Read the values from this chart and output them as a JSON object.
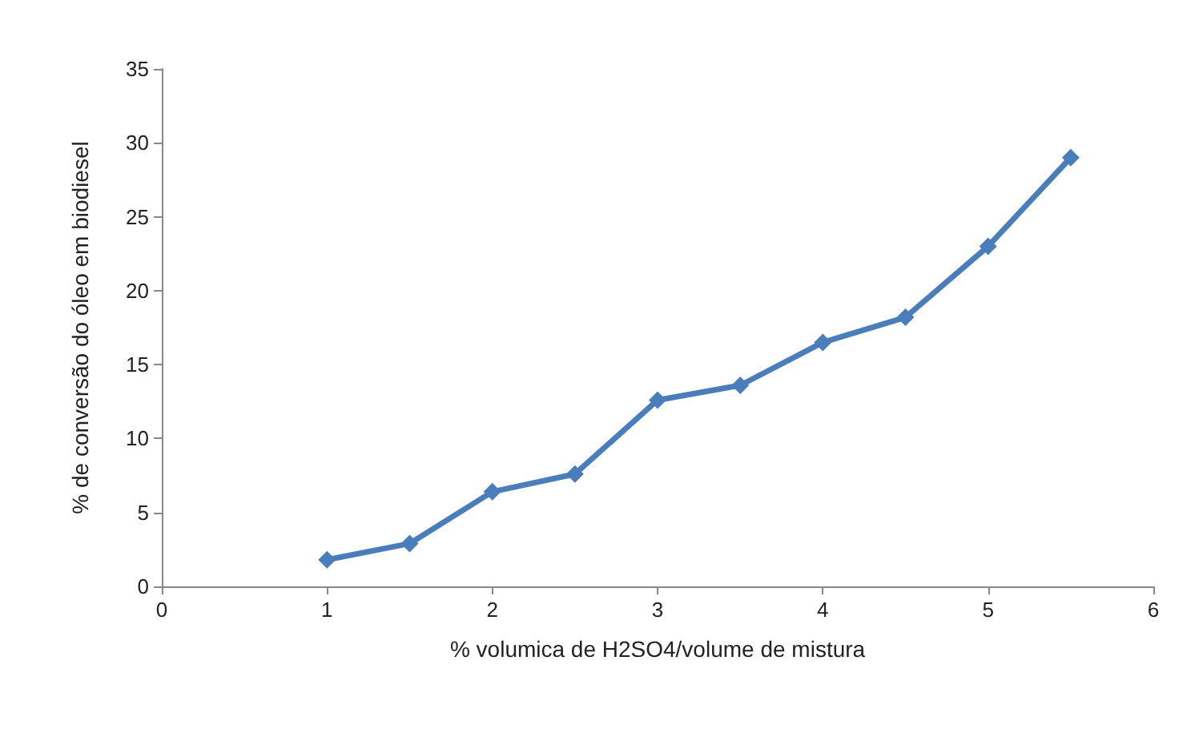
{
  "chart_data": {
    "type": "line",
    "xlabel": "% volumica de H2SO4/volume de mistura",
    "ylabel": "% de conversão do óleo em biodiesel",
    "x": [
      1,
      1.5,
      2,
      2.5,
      3,
      3.5,
      4,
      4.5,
      5,
      5.5
    ],
    "series": [
      {
        "color": "#4a7ebb",
        "values": [
          1.8,
          2.9,
          6.4,
          7.6,
          12.6,
          13.6,
          16.5,
          18.2,
          23.0,
          29.0
        ]
      }
    ],
    "xlim": [
      0,
      6
    ],
    "xticks": [
      0,
      1,
      2,
      3,
      4,
      5,
      6
    ],
    "ylim": [
      0,
      35
    ],
    "yticks": [
      0,
      5,
      10,
      15,
      20,
      25,
      30,
      35
    ],
    "grid": false,
    "marker": "diamond",
    "line_style": "solid"
  }
}
